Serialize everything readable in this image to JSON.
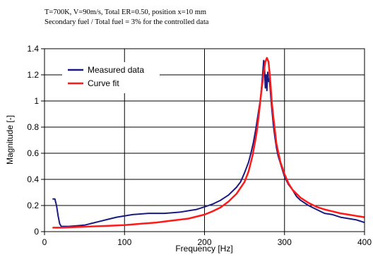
{
  "chart_data": {
    "type": "line",
    "annotation_lines": [
      "T=700K, V=90m/s, Total ER=0.50, position x=10 mm",
      "Secondary fuel / Total fuel = 3% for the controlled data"
    ],
    "xlabel": "Frequency [Hz]",
    "ylabel": "Magnitude [-]",
    "xlim": [
      0,
      400
    ],
    "ylim": [
      0,
      1.4
    ],
    "x_ticks": [
      0,
      100,
      200,
      300,
      400
    ],
    "y_ticks": [
      0,
      0.2,
      0.4,
      0.6,
      0.8,
      1,
      1.2,
      1.4
    ],
    "y_tick_labels": [
      "0",
      "0.2",
      "0.4",
      "0.6",
      "0.8",
      "1",
      "1.2",
      "1.4"
    ],
    "grid": true,
    "legend_position": "top-left",
    "series": [
      {
        "name": "Measured data",
        "color": "#1a1a80",
        "x": [
          10,
          13,
          15,
          17,
          19,
          21,
          23,
          25,
          30,
          40,
          50,
          60,
          70,
          80,
          90,
          100,
          110,
          120,
          130,
          140,
          150,
          160,
          170,
          180,
          190,
          200,
          210,
          220,
          230,
          240,
          245,
          250,
          255,
          258,
          261,
          264,
          267,
          270,
          272,
          274,
          275,
          276,
          277,
          278,
          279,
          280,
          281,
          282,
          283,
          284,
          286,
          288,
          290,
          292,
          295,
          298,
          300,
          305,
          310,
          315,
          320,
          330,
          340,
          350,
          360,
          370,
          380,
          390,
          400
        ],
        "y": [
          0.25,
          0.25,
          0.2,
          0.12,
          0.06,
          0.04,
          0.04,
          0.04,
          0.04,
          0.045,
          0.05,
          0.065,
          0.08,
          0.095,
          0.11,
          0.12,
          0.13,
          0.135,
          0.14,
          0.14,
          0.14,
          0.145,
          0.15,
          0.16,
          0.17,
          0.19,
          0.21,
          0.24,
          0.28,
          0.34,
          0.38,
          0.45,
          0.53,
          0.6,
          0.68,
          0.78,
          0.9,
          1.02,
          1.15,
          1.31,
          1.25,
          1.1,
          1.2,
          1.08,
          1.22,
          1.15,
          1.17,
          1.1,
          1.02,
          0.95,
          0.82,
          0.72,
          0.64,
          0.58,
          0.52,
          0.46,
          0.42,
          0.36,
          0.32,
          0.27,
          0.24,
          0.2,
          0.17,
          0.14,
          0.13,
          0.11,
          0.1,
          0.09,
          0.07
        ]
      },
      {
        "name": "Curve fit",
        "color": "#ff1a1a",
        "x": [
          10,
          20,
          40,
          60,
          80,
          100,
          120,
          140,
          160,
          180,
          200,
          210,
          220,
          230,
          240,
          250,
          255,
          260,
          265,
          268,
          271,
          274,
          276,
          278,
          280,
          282,
          284,
          286,
          290,
          295,
          300,
          305,
          310,
          320,
          330,
          340,
          350,
          360,
          370,
          380,
          390,
          400
        ],
        "y": [
          0.03,
          0.03,
          0.035,
          0.04,
          0.045,
          0.05,
          0.06,
          0.07,
          0.085,
          0.1,
          0.13,
          0.155,
          0.185,
          0.23,
          0.29,
          0.38,
          0.46,
          0.58,
          0.75,
          0.9,
          1.07,
          1.22,
          1.3,
          1.33,
          1.3,
          1.17,
          1.0,
          0.88,
          0.67,
          0.53,
          0.44,
          0.37,
          0.32,
          0.26,
          0.22,
          0.19,
          0.17,
          0.155,
          0.14,
          0.13,
          0.12,
          0.11
        ]
      }
    ]
  }
}
